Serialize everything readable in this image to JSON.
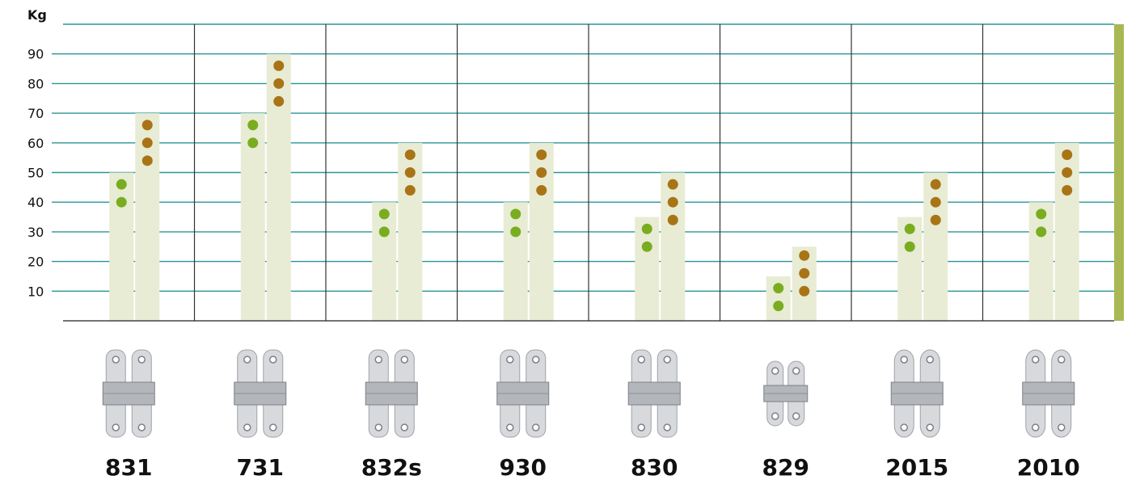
{
  "chart_data": {
    "type": "bar",
    "title": "",
    "xlabel": "",
    "ylabel": "Kg",
    "ylim": [
      0,
      100
    ],
    "yticks": [
      10,
      20,
      30,
      40,
      50,
      60,
      70,
      80,
      90
    ],
    "grid": true,
    "legend": "none",
    "categories": [
      "831",
      "731",
      "832s",
      "930",
      "830",
      "829",
      "2015",
      "2010"
    ],
    "series": [
      {
        "color": "#e8ecd4",
        "values": [
          50,
          70,
          40,
          40,
          35,
          15,
          35,
          40
        ],
        "points": [
          [
            40,
            46
          ],
          [
            60,
            66
          ],
          [
            30,
            36
          ],
          [
            30,
            36
          ],
          [
            25,
            31
          ],
          [
            5,
            11
          ],
          [
            25,
            31
          ],
          [
            30,
            36
          ]
        ],
        "point_color": "#79ad1f"
      },
      {
        "color": "#e8ecd4",
        "values": [
          70,
          90,
          60,
          60,
          50,
          25,
          50,
          60
        ],
        "points": [
          [
            54,
            60,
            66
          ],
          [
            74,
            80,
            86
          ],
          [
            44,
            50,
            56
          ],
          [
            44,
            50,
            56
          ],
          [
            34,
            40,
            46
          ],
          [
            10,
            16,
            22
          ],
          [
            34,
            40,
            46
          ],
          [
            44,
            50,
            56
          ]
        ],
        "point_color": "#a97416"
      }
    ],
    "product_images": [
      "hinge",
      "hinge",
      "hinge",
      "hinge",
      "hinge",
      "hinge",
      "hinge-round",
      "hinge-round"
    ]
  },
  "colors": {
    "gridline": "#2a9696",
    "separator": "#333333",
    "accent_bar": "#a9b853",
    "bar": "#e8ecd4",
    "dot_green": "#79ad1f",
    "dot_brown": "#a97416"
  }
}
